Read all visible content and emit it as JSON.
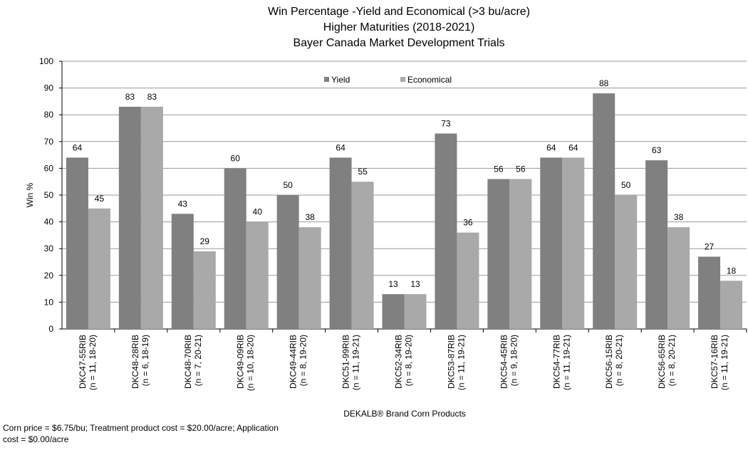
{
  "chart_data": {
    "type": "bar",
    "title": [
      "Win Percentage -Yield and Economical (>3 bu/acre)",
      "Higher Maturities (2018-2021)",
      "Bayer Canada Market Development Trials"
    ],
    "x_label": "DEKALB® Brand Corn Products",
    "y_label": "Win %",
    "note": [
      "Corn price = $6.75/bu; Treatment product cost = $20.00/acre; Application",
      "cost = $0.00/acre"
    ],
    "categories": [
      "DKC47-55RIB\n(n = 11, 18-20)",
      "DKC48-28RIB\n(n = 6, 18-19)",
      "DKC48-70RIB\n(n = 7, 20-21)",
      "DKC49-09RIB\n(n = 10, 18-20)",
      "DKC49-44RIB\n(n = 8, 19-20)",
      "DKC51-99RIB\n(n = 11, 19-21)",
      "DKC52-34RIB\n(n = 8, 19-20)",
      "DKC53-87RIB\n(n = 11, 19-21)",
      "DKC54-45RIB\n(n = 9, 18-20)",
      "DKC54-77RIB\n(n = 11, 19-21)",
      "DKC56-15RIB\n(n = 8, 20-21)",
      "DKC56-65RIB\n(n = 8, 20-21)",
      "DKC57-16RIB\n(n = 11, 19-21)"
    ],
    "series": [
      {
        "name": "Yield",
        "color": "#808080",
        "values": [
          64,
          83,
          43,
          60,
          50,
          64,
          13,
          73,
          56,
          64,
          88,
          63,
          27
        ]
      },
      {
        "name": "Economical",
        "color": "#a9a9a9",
        "values": [
          45,
          83,
          29,
          40,
          38,
          55,
          13,
          36,
          56,
          64,
          50,
          38,
          18
        ]
      }
    ],
    "ylim": [
      0,
      100
    ],
    "yticks": [
      0,
      10,
      20,
      30,
      40,
      50,
      60,
      70,
      80,
      90,
      100
    ],
    "grid": true,
    "legend": "top"
  }
}
